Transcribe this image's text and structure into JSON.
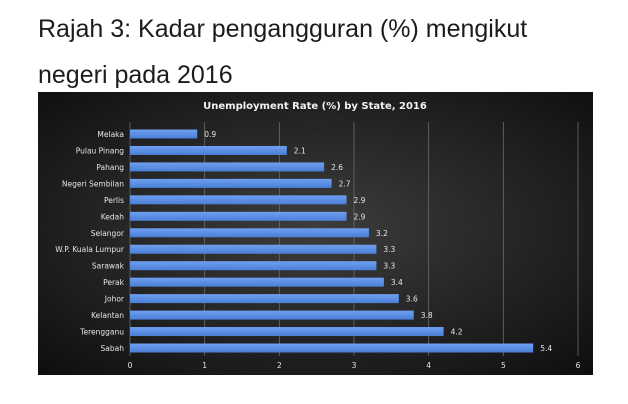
{
  "page": {
    "heading_line1": "Rajah 3: Kadar pengangguran (%) mengikut",
    "heading_line2": "negeri pada 2016"
  },
  "colors": {
    "bar": "#4a7fd6",
    "bar_highlight": "#6f9ff0",
    "panel_center": "#3d3d3d",
    "panel_edge": "#0c0c0c",
    "gridline": "#6b6b6b"
  },
  "chart_data": {
    "type": "bar",
    "orientation": "horizontal",
    "title": "Unemployment Rate (%) by State, 2016",
    "categories": [
      "Melaka",
      "Pulau Pinang",
      "Pahang",
      "Negeri Sembilan",
      "Perlis",
      "Kedah",
      "Selangor",
      "W.P. Kuala Lumpur",
      "Sarawak",
      "Perak",
      "Johor",
      "Kelantan",
      "Terengganu",
      "Sabah"
    ],
    "values": [
      0.9,
      2.1,
      2.6,
      2.7,
      2.9,
      2.9,
      3.2,
      3.3,
      3.3,
      3.4,
      3.6,
      3.8,
      4.2,
      5.4
    ],
    "value_labels": [
      "0.9",
      "2.1",
      "2.6",
      "2.7",
      "2.9",
      "2.9",
      "3.2",
      "3.3",
      "3.3",
      "3.4",
      "3.6",
      "3.8",
      "4.2",
      "5.4"
    ],
    "xlim": [
      0,
      6
    ],
    "x_ticks": [
      "0",
      "1",
      "2",
      "3",
      "4",
      "5",
      "6"
    ],
    "xlabel": "",
    "ylabel": "",
    "grid": "vertical",
    "legend": "none"
  }
}
